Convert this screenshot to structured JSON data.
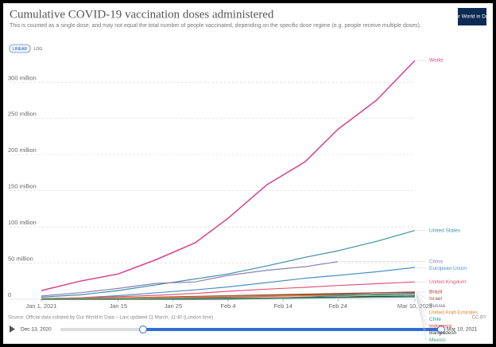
{
  "chart_data": {
    "type": "line",
    "title": "Cumulative COVID-19 vaccination doses administered",
    "subtitle": "This is counted as a single dose, and may not equal the total number of people vaccinated, depending on the specific dose regime (e.g. people receive multiple doses).",
    "logo": "Our World in Data",
    "scale_options": [
      "LINEAR",
      "LOG"
    ],
    "source": "Source: Official data collated by Our World in Data – Last updated 11 March, 11:40 (London time)",
    "license": "CC BY",
    "timeline": {
      "start": "Dec 13, 2020",
      "end": "Mar 10, 2021"
    },
    "grid": true,
    "log_scale": false,
    "x": [
      0,
      7,
      14,
      21,
      28,
      34,
      41,
      48,
      54,
      61,
      68
    ],
    "xlim": [
      0,
      68
    ],
    "xticks": [
      {
        "value": 0,
        "label": "Jan 1, 2021"
      },
      {
        "value": 14,
        "label": "Jan 15"
      },
      {
        "value": 24,
        "label": "Jan 25"
      },
      {
        "value": 34,
        "label": "Feb 4"
      },
      {
        "value": 44,
        "label": "Feb 14"
      },
      {
        "value": 54,
        "label": "Feb 24"
      },
      {
        "value": 68,
        "label": "Mar 10, 2021"
      }
    ],
    "ylim": [
      0,
      330000000
    ],
    "yticks": [
      {
        "value": 0,
        "label": "0"
      },
      {
        "value": 50000000,
        "label": "50 million"
      },
      {
        "value": 100000000,
        "label": "100 million"
      },
      {
        "value": 150000000,
        "label": "150 million"
      },
      {
        "value": 200000000,
        "label": "200 million"
      },
      {
        "value": 250000000,
        "label": "250 million"
      },
      {
        "value": 300000000,
        "label": "300 million"
      }
    ],
    "series": [
      {
        "name": "World",
        "color": "#d6418b",
        "values": [
          12000000,
          25000000,
          35000000,
          55000000,
          78000000,
          112000000,
          158000000,
          190000000,
          235000000,
          275000000,
          330000000
        ]
      },
      {
        "name": "United States",
        "color": "#3d8fa6",
        "values": [
          3000000,
          6000000,
          12000000,
          20000000,
          28000000,
          35000000,
          46000000,
          58000000,
          67000000,
          80000000,
          95000000
        ]
      },
      {
        "name": "China",
        "color": "#8c7fb8",
        "values": [
          4500000,
          9000000,
          15000000,
          22000000,
          24000000,
          33000000,
          40000000,
          45000000,
          52000000,
          null,
          null
        ]
      },
      {
        "name": "European Union",
        "color": "#4c8fc7",
        "values": [
          500000,
          2000000,
          5000000,
          9000000,
          13000000,
          17000000,
          23000000,
          29000000,
          33000000,
          38000000,
          44000000
        ]
      },
      {
        "name": "United Kingdom",
        "color": "#e0557a",
        "values": [
          1000000,
          2000000,
          3500000,
          5500000,
          8000000,
          11000000,
          14000000,
          16500000,
          19000000,
          21500000,
          24000000
        ]
      },
      {
        "name": "Brazil",
        "color": "#b03a2e",
        "values": [
          0,
          0,
          0,
          1000000,
          2000000,
          4000000,
          5000000,
          6000000,
          7000000,
          9000000,
          10000000
        ]
      },
      {
        "name": "Israel",
        "color": "#8a5a44",
        "values": [
          500000,
          1300000,
          2000000,
          3000000,
          4000000,
          5000000,
          6000000,
          7000000,
          8000000,
          9000000,
          9500000
        ]
      },
      {
        "name": "Russia",
        "color": "#6f6680",
        "values": [
          500000,
          800000,
          1000000,
          1500000,
          2000000,
          3000000,
          4000000,
          5000000,
          6000000,
          7000000,
          8000000
        ]
      },
      {
        "name": "United Arab Emirates",
        "color": "#e0893a",
        "values": [
          500000,
          1000000,
          1500000,
          2000000,
          3000000,
          4000000,
          4500000,
          5000000,
          5500000,
          6500000,
          7000000
        ]
      },
      {
        "name": "Chile",
        "color": "#2e9e8f",
        "values": [
          0,
          0,
          0,
          0,
          0,
          0,
          1000000,
          3000000,
          5000000,
          6000000,
          7000000
        ]
      },
      {
        "name": "Indonesia",
        "color": "#d93a3a",
        "values": [
          0,
          0,
          0,
          500000,
          1000000,
          1500000,
          2000000,
          2500000,
          3000000,
          4000000,
          4500000
        ]
      },
      {
        "name": "Bangladesh",
        "color": "#3a3a3a",
        "values": [
          0,
          0,
          0,
          0,
          0,
          500000,
          1000000,
          2000000,
          3000000,
          4000000,
          4500000
        ]
      },
      {
        "name": "Mexico",
        "color": "#3aa07a",
        "values": [
          0,
          0,
          100000,
          300000,
          600000,
          800000,
          1000000,
          1500000,
          2000000,
          2500000,
          3000000
        ]
      }
    ]
  }
}
